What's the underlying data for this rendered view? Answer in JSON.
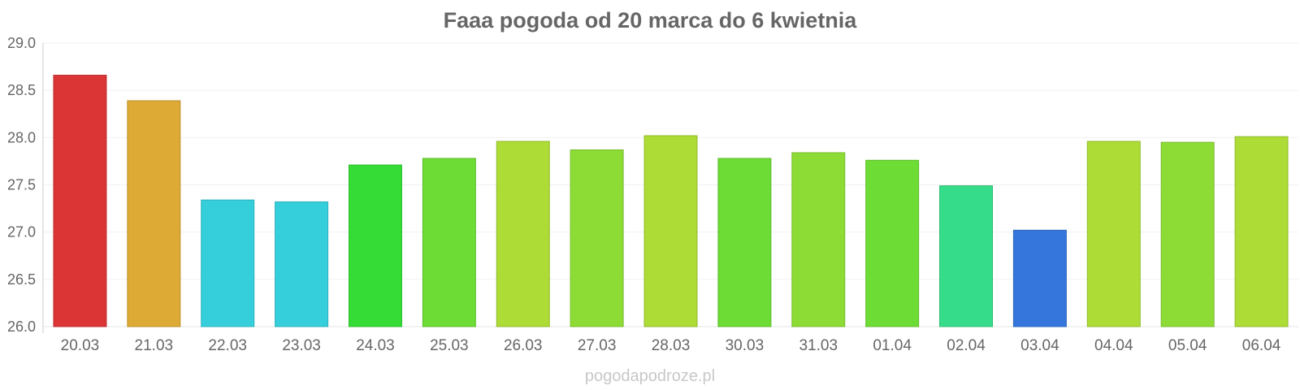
{
  "chart_data": {
    "type": "bar",
    "title": "Faaa pogoda od 20 marca do 6 kwietnia",
    "xlabel": "",
    "ylabel": "",
    "ylim": [
      26.0,
      29.0
    ],
    "y_ticks": [
      "26.0",
      "26.5",
      "27.0",
      "27.5",
      "28.0",
      "28.5",
      "29.0"
    ],
    "y_tick_values": [
      26.0,
      26.5,
      27.0,
      27.5,
      28.0,
      28.5,
      29.0
    ],
    "grid": true,
    "legend": "none",
    "categories": [
      "20.03",
      "21.03",
      "22.03",
      "23.03",
      "24.03",
      "25.03",
      "26.03",
      "27.03",
      "28.03",
      "30.03",
      "31.03",
      "01.04",
      "02.04",
      "03.04",
      "04.04",
      "05.04",
      "06.04"
    ],
    "values": [
      28.66,
      28.39,
      27.34,
      27.32,
      27.71,
      27.78,
      27.96,
      27.87,
      28.02,
      27.78,
      27.84,
      27.76,
      27.49,
      27.02,
      27.96,
      27.95,
      28.01
    ],
    "colors": [
      "#dc3535",
      "#dcaa35",
      "#35cfdc",
      "#35cfdc",
      "#35dc35",
      "#6ddc35",
      "#acdc35",
      "#8ddc35",
      "#acdc35",
      "#6ddc35",
      "#8ddc35",
      "#6ddc35",
      "#35dc89",
      "#3576dc",
      "#acdc35",
      "#8ddc35",
      "#acdc35"
    ]
  },
  "watermark": "pogodapodroze.pl"
}
